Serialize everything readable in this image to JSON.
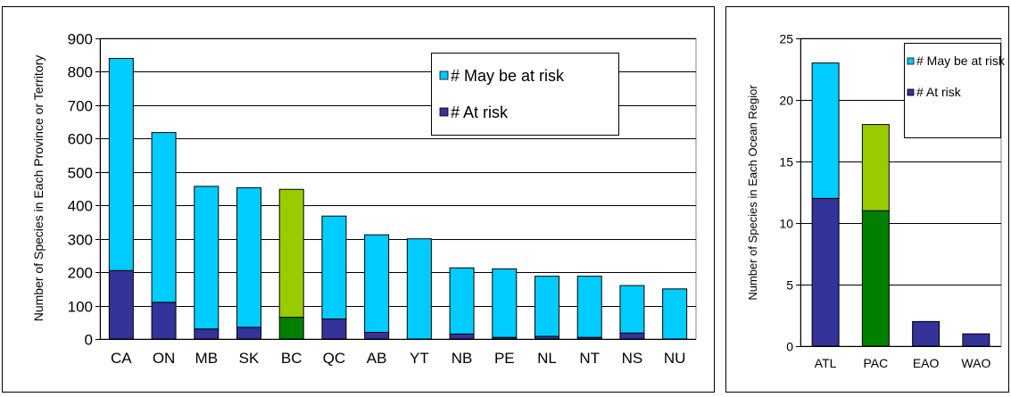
{
  "chart_data": [
    {
      "type": "bar",
      "stacked": true,
      "ylabel": "Number of Species in Each Province or Territory",
      "ylim": [
        0,
        900
      ],
      "yticks": [
        0,
        100,
        200,
        300,
        400,
        500,
        600,
        700,
        800,
        900
      ],
      "grid": true,
      "legend_position": "top-right",
      "categories": [
        "CA",
        "ON",
        "MB",
        "SK",
        "BC",
        "QC",
        "AB",
        "YT",
        "NB",
        "PE",
        "NL",
        "NT",
        "NS",
        "NU"
      ],
      "series": [
        {
          "name": "# At risk",
          "values": [
            205,
            110,
            30,
            35,
            65,
            60,
            20,
            0,
            15,
            5,
            8,
            5,
            18,
            0
          ]
        },
        {
          "name": "# May be at risk",
          "values": [
            635,
            508,
            427,
            418,
            383,
            308,
            292,
            300,
            198,
            205,
            180,
            183,
            142,
            150
          ]
        }
      ],
      "colors": {
        "at_risk": "#333399",
        "may_be_at_risk": "#00ccff",
        "highlight_at_risk": "#008000",
        "highlight_may_be_at_risk": "#99cc00"
      },
      "highlight_category": "BC"
    },
    {
      "type": "bar",
      "stacked": true,
      "ylabel": "Number of Species in Each Ocean Regior",
      "ylim": [
        0,
        25
      ],
      "yticks": [
        0,
        5,
        10,
        15,
        20,
        25
      ],
      "grid": true,
      "legend_position": "top-right",
      "categories": [
        "ATL",
        "PAC",
        "EAO",
        "WAO"
      ],
      "series": [
        {
          "name": "# At risk",
          "values": [
            12,
            11,
            2,
            1
          ]
        },
        {
          "name": "# May be at risk",
          "values": [
            11,
            7,
            0,
            0
          ]
        }
      ],
      "colors": {
        "at_risk": "#333399",
        "may_be_at_risk": "#00ccff",
        "highlight_at_risk": "#008000",
        "highlight_may_be_at_risk": "#99cc00"
      },
      "highlight_category": "PAC"
    }
  ]
}
